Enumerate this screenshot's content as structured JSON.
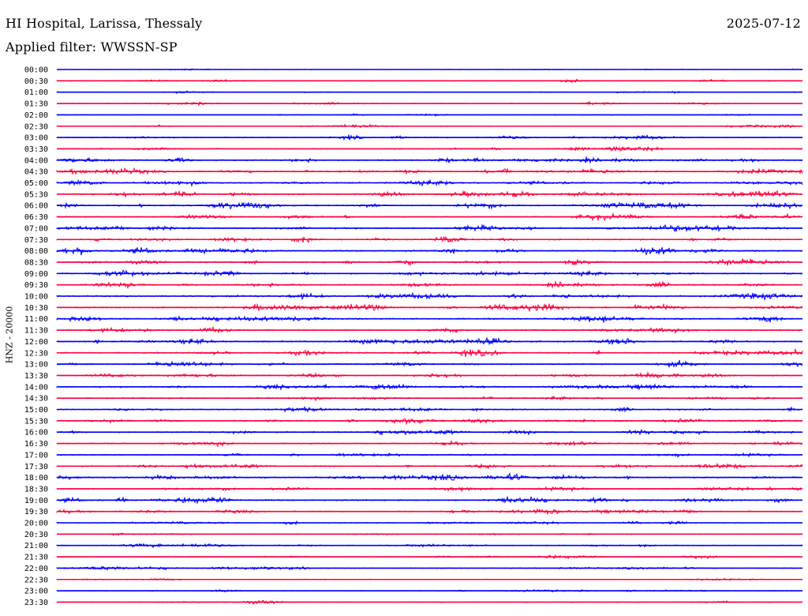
{
  "header": {
    "station": "HI Hospital, Larissa, Thessaly",
    "date": "2025-07-12",
    "filter": "Applied filter: WWSSN-SP"
  },
  "axis": {
    "ylabel": "HNZ - 20000"
  },
  "colors": {
    "hour_trace": "#0000ff",
    "half_hour_trace": "#ff0040",
    "background": "#ffffff"
  },
  "chart_data": {
    "type": "line",
    "title": "HI Hospital, Larissa, Thessaly",
    "subtitle": "Applied filter: WWSSN-SP",
    "ylabel": "HNZ - 20000",
    "xlabel": "",
    "grid": false,
    "rows": [
      {
        "time": "00:00",
        "activity": 0.2
      },
      {
        "time": "00:30",
        "activity": 0.4
      },
      {
        "time": "01:00",
        "activity": 0.3
      },
      {
        "time": "01:30",
        "activity": 0.4
      },
      {
        "time": "02:00",
        "activity": 0.3
      },
      {
        "time": "02:30",
        "activity": 0.4
      },
      {
        "time": "03:00",
        "activity": 0.6
      },
      {
        "time": "03:30",
        "activity": 0.6
      },
      {
        "time": "04:00",
        "activity": 0.8
      },
      {
        "time": "04:30",
        "activity": 0.9
      },
      {
        "time": "05:00",
        "activity": 0.8
      },
      {
        "time": "05:30",
        "activity": 0.9
      },
      {
        "time": "06:00",
        "activity": 0.9
      },
      {
        "time": "06:30",
        "activity": 0.7
      },
      {
        "time": "07:00",
        "activity": 0.9
      },
      {
        "time": "07:30",
        "activity": 0.8
      },
      {
        "time": "08:00",
        "activity": 0.9
      },
      {
        "time": "08:30",
        "activity": 0.8
      },
      {
        "time": "09:00",
        "activity": 0.8
      },
      {
        "time": "09:30",
        "activity": 0.7
      },
      {
        "time": "10:00",
        "activity": 0.9
      },
      {
        "time": "10:30",
        "activity": 1.0
      },
      {
        "time": "11:00",
        "activity": 0.9
      },
      {
        "time": "11:30",
        "activity": 0.8
      },
      {
        "time": "12:00",
        "activity": 0.9
      },
      {
        "time": "12:30",
        "activity": 0.8
      },
      {
        "time": "13:00",
        "activity": 0.7
      },
      {
        "time": "13:30",
        "activity": 0.7
      },
      {
        "time": "14:00",
        "activity": 0.8
      },
      {
        "time": "14:30",
        "activity": 0.7
      },
      {
        "time": "15:00",
        "activity": 0.7
      },
      {
        "time": "15:30",
        "activity": 0.8
      },
      {
        "time": "16:00",
        "activity": 0.8
      },
      {
        "time": "16:30",
        "activity": 0.7
      },
      {
        "time": "17:00",
        "activity": 0.6
      },
      {
        "time": "17:30",
        "activity": 0.8
      },
      {
        "time": "18:00",
        "activity": 0.9
      },
      {
        "time": "18:30",
        "activity": 0.7
      },
      {
        "time": "19:00",
        "activity": 0.9
      },
      {
        "time": "19:30",
        "activity": 0.7
      },
      {
        "time": "20:00",
        "activity": 0.5
      },
      {
        "time": "20:30",
        "activity": 0.3
      },
      {
        "time": "21:00",
        "activity": 0.5
      },
      {
        "time": "21:30",
        "activity": 0.4
      },
      {
        "time": "22:00",
        "activity": 0.5
      },
      {
        "time": "22:30",
        "activity": 0.3
      },
      {
        "time": "23:00",
        "activity": 0.4
      },
      {
        "time": "23:30",
        "activity": 0.3
      }
    ]
  }
}
